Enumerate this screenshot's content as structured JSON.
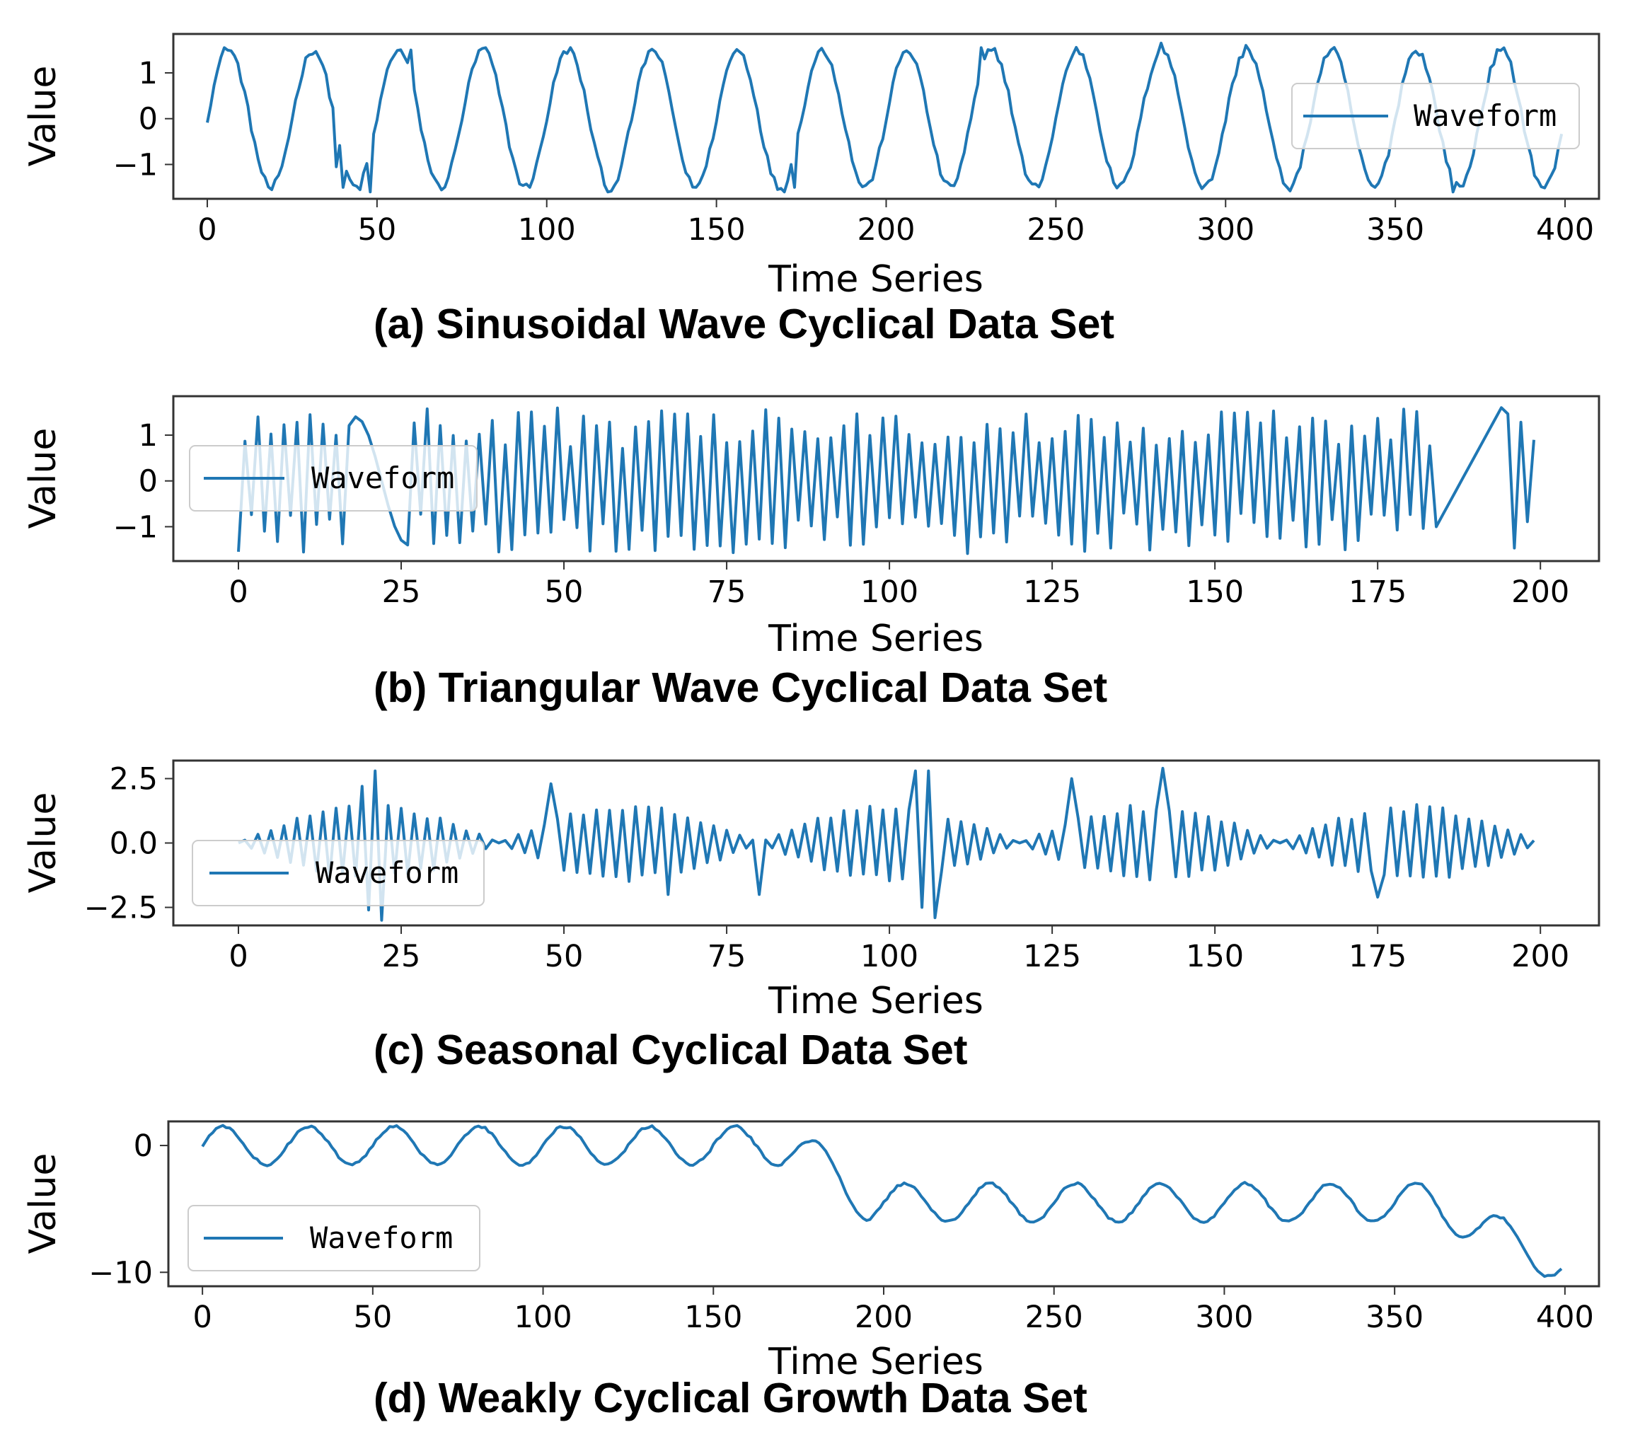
{
  "legend_label": "Waveform",
  "ylabel": "Value",
  "xlabel": "Time Series",
  "line_color": "#1f77b4",
  "chart_data": [
    {
      "type": "line",
      "caption": "(a)  Sinusoidal Wave Cyclical Data Set",
      "xlabel": "Time Series",
      "ylabel": "Value",
      "xlim": [
        -10,
        410
      ],
      "ylim": [
        -1.75,
        1.85
      ],
      "xticks": [
        0,
        50,
        100,
        150,
        200,
        250,
        300,
        350,
        400
      ],
      "xtick_labels": [
        "0",
        "50",
        "100",
        "150",
        "200",
        "250",
        "300",
        "350",
        "400"
      ],
      "yticks": [
        -1,
        0,
        1
      ],
      "ytick_labels": [
        "−1",
        "0",
        "1"
      ],
      "legend": "upper right",
      "grid": false,
      "series": [
        {
          "name": "Waveform",
          "pattern": "sine",
          "x_start": 0,
          "x_end": 399,
          "period": 25,
          "amplitude": 1.5,
          "spikes": [
            [
              5,
              1.55
            ],
            [
              19,
              -1.55
            ],
            [
              38,
              -1.05
            ],
            [
              40,
              -1.5
            ],
            [
              45,
              -1.55
            ],
            [
              48,
              -1.6
            ],
            [
              60,
              1.5
            ],
            [
              82,
              1.55
            ],
            [
              107,
              1.55
            ],
            [
              118,
              -1.6
            ],
            [
              144,
              -1.5
            ],
            [
              170,
              -1.6
            ],
            [
              172,
              -1.0
            ],
            [
              173,
              -1.5
            ],
            [
              228,
              1.55
            ],
            [
              281,
              1.65
            ],
            [
              306,
              1.6
            ],
            [
              367,
              -1.6
            ]
          ]
        }
      ]
    },
    {
      "type": "line",
      "caption": "(b)  Triangular Wave Cyclical Data Set",
      "xlabel": "Time Series",
      "ylabel": "Value",
      "xlim": [
        -10,
        209
      ],
      "ylim": [
        -1.75,
        1.85
      ],
      "xticks": [
        0,
        25,
        50,
        75,
        100,
        125,
        150,
        175,
        200
      ],
      "xtick_labels": [
        "0",
        "25",
        "50",
        "75",
        "100",
        "125",
        "150",
        "175",
        "200"
      ],
      "yticks": [
        -1,
        0,
        1
      ],
      "ytick_labels": [
        "−1",
        "0",
        "1"
      ],
      "legend": "center left",
      "grid": false,
      "series": [
        {
          "name": "Waveform",
          "pattern": "triangle",
          "x_start": 0,
          "x_end": 199,
          "amplitude_range": [
            -1.6,
            1.6
          ],
          "smooth_segments": [
            [
              18,
              26
            ],
            [
              184,
              194
            ]
          ]
        }
      ]
    },
    {
      "type": "line",
      "caption": "(c)  Seasonal Cyclical Data Set",
      "xlabel": "Time Series",
      "ylabel": "Value",
      "xlim": [
        -10,
        209
      ],
      "ylim": [
        -3.2,
        3.2
      ],
      "xticks": [
        0,
        25,
        50,
        75,
        100,
        125,
        150,
        175,
        200
      ],
      "xtick_labels": [
        "0",
        "25",
        "50",
        "75",
        "100",
        "125",
        "150",
        "175",
        "200"
      ],
      "yticks": [
        -2.5,
        0.0,
        2.5
      ],
      "ytick_labels": [
        "−2.5",
        "0.0",
        "2.5"
      ],
      "legend": "lower left",
      "grid": false,
      "series": [
        {
          "name": "Waveform",
          "pattern": "seasonal",
          "x_start": 0,
          "x_end": 199,
          "envelope_peak": 1.5,
          "spikes": [
            [
              19,
              2.2
            ],
            [
              20,
              -2.6
            ],
            [
              21,
              2.8
            ],
            [
              22,
              -3.0
            ],
            [
              48,
              2.3
            ],
            [
              66,
              -2.0
            ],
            [
              80,
              -2.0
            ],
            [
              104,
              2.8
            ],
            [
              105,
              -2.5
            ],
            [
              106,
              2.8
            ],
            [
              107,
              -2.9
            ],
            [
              128,
              2.5
            ],
            [
              142,
              2.9
            ],
            [
              175,
              -2.1
            ]
          ]
        }
      ]
    },
    {
      "type": "line",
      "caption": "(d)  Weakly Cyclical Growth Data Set",
      "xlabel": "Time Series",
      "ylabel": "Value",
      "xlim": [
        -10,
        410
      ],
      "ylim": [
        -11.1,
        1.9
      ],
      "xticks": [
        0,
        50,
        100,
        150,
        200,
        250,
        300,
        350,
        400
      ],
      "xtick_labels": [
        "0",
        "50",
        "100",
        "150",
        "200",
        "250",
        "300",
        "350",
        "400"
      ],
      "yticks": [
        -10,
        0
      ],
      "ytick_labels": [
        "−10",
        "0"
      ],
      "legend": "lower left",
      "grid": false,
      "series": [
        {
          "name": "Waveform",
          "pattern": "sine-with-trend",
          "x_start": 0,
          "x_end": 399,
          "period": 25,
          "amplitude": 1.5,
          "level_changes": [
            [
              0,
              0
            ],
            [
              175,
              0
            ],
            [
              195,
              -4.5
            ],
            [
              360,
              -4.5
            ],
            [
              400,
              -9.5
            ]
          ]
        }
      ]
    }
  ]
}
